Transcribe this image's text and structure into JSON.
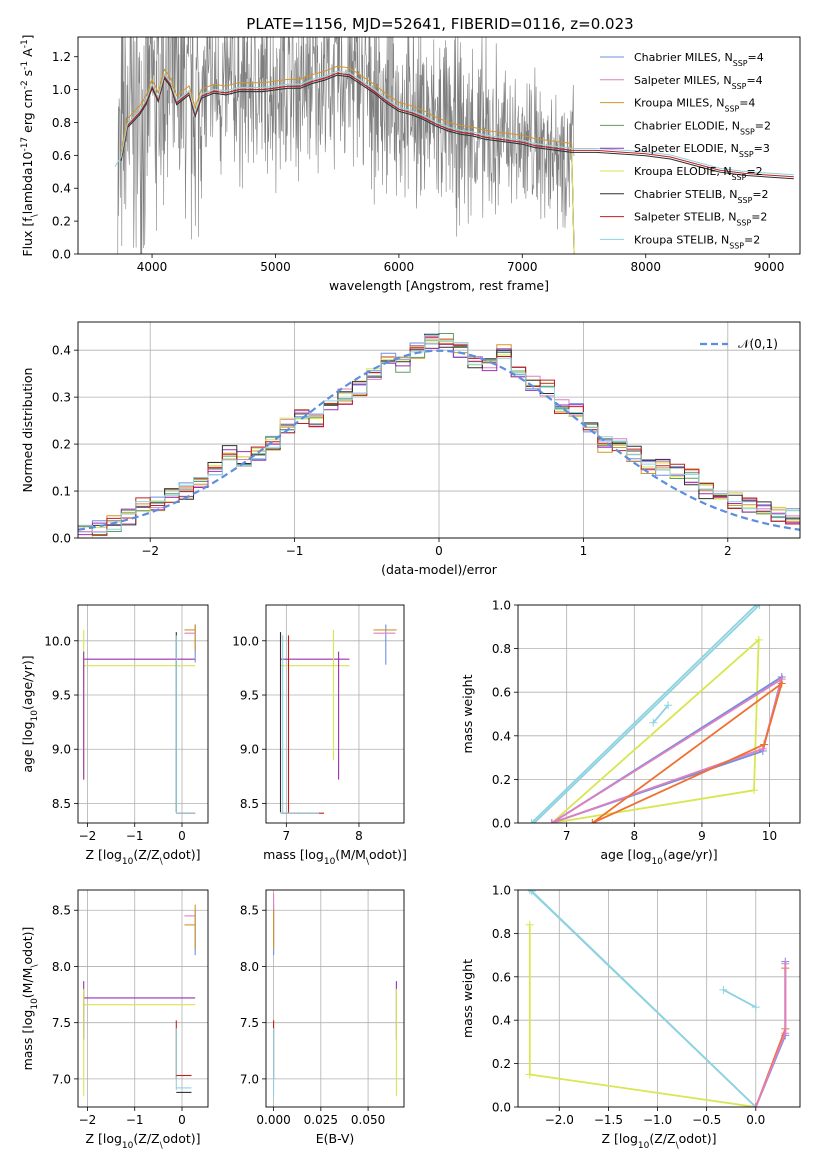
{
  "figure": {
    "title": "PLATE=1156, MJD=52641, FIBERID=0116, z=0.023"
  },
  "colors": {
    "data": "#7f7f7f",
    "grid": "#b0b0b0",
    "models": [
      "#6f8fe0",
      "#e07fc0",
      "#d0962a",
      "#5f9f5f",
      "#9b30b0",
      "#d8e650",
      "#303030",
      "#c02020",
      "#8ed2e0"
    ],
    "mw_palette": [
      "#6f8fe0",
      "#e07fc0",
      "#f07030",
      "#9b30b0",
      "#d8e650",
      "#8ed2e0",
      "#c02020"
    ]
  },
  "chart_data": [
    {
      "id": "spectrum",
      "type": "line",
      "xlabel": "wavelength [Angstrom, rest frame]",
      "ylabel": "Flux [f$_\\lambda$10$^{-17}$ erg cm$^{-2}$ s$^{-1}$ A$^{-1}$]",
      "xlim": [
        3400,
        9250
      ],
      "ylim": [
        0,
        1.32
      ],
      "xticks": [
        4000,
        5000,
        6000,
        7000,
        8000,
        9000
      ],
      "yticks": [
        0.0,
        0.2,
        0.4,
        0.6,
        0.8,
        1.0,
        1.2
      ],
      "legend_loc": "upper right",
      "data_series": {
        "name": "data",
        "color": "#7f7f7f",
        "x_range": [
          3720,
          7420
        ]
      },
      "continuum": {
        "x": [
          3700,
          3750,
          3800,
          3850,
          3900,
          3950,
          4000,
          4050,
          4100,
          4150,
          4200,
          4250,
          4300,
          4350,
          4400,
          4500,
          4600,
          4700,
          4800,
          4900,
          5000,
          5100,
          5200,
          5300,
          5400,
          5500,
          5600,
          5700,
          5800,
          5900,
          6000,
          6100,
          6200,
          6300,
          6400,
          6500,
          6600,
          6700,
          6800,
          6900,
          7000,
          7100,
          7200,
          7300,
          7400,
          7600,
          7800,
          8000,
          8200,
          8400,
          8600,
          8800,
          9000,
          9200
        ],
        "y": [
          0.52,
          0.58,
          0.78,
          0.82,
          0.86,
          0.92,
          1.02,
          0.94,
          1.08,
          1.03,
          0.92,
          0.95,
          0.98,
          0.85,
          0.96,
          0.99,
          0.98,
          1.0,
          1.0,
          1.0,
          1.01,
          1.02,
          1.02,
          1.05,
          1.07,
          1.1,
          1.09,
          1.04,
          0.99,
          0.93,
          0.88,
          0.86,
          0.83,
          0.79,
          0.76,
          0.74,
          0.73,
          0.71,
          0.7,
          0.69,
          0.68,
          0.66,
          0.65,
          0.64,
          0.63,
          0.63,
          0.62,
          0.61,
          0.59,
          0.55,
          0.51,
          0.49,
          0.48,
          0.47
        ]
      },
      "legend": [
        {
          "name": "Chabrier MILES, N$_{SSP}$=4"
        },
        {
          "name": "Salpeter MILES, N$_{SSP}$=4"
        },
        {
          "name": "Kroupa MILES, N$_{SSP}$=4"
        },
        {
          "name": "Chabrier ELODIE, N$_{SSP}$=2"
        },
        {
          "name": "Salpeter ELODIE, N$_{SSP}$=3"
        },
        {
          "name": "Kroupa ELODIE, N$_{SSP}$=2"
        },
        {
          "name": "Chabrier STELIB, N$_{SSP}$=2"
        },
        {
          "name": "Salpeter STELIB, N$_{SSP}$=2"
        },
        {
          "name": "Kroupa STELIB, N$_{SSP}$=2"
        }
      ]
    },
    {
      "id": "residuals",
      "type": "line",
      "xlabel": "(data-model)/error",
      "ylabel": "Normed distribution",
      "xlim": [
        -2.5,
        2.5
      ],
      "ylim": [
        0,
        0.46
      ],
      "xticks": [
        -2,
        -1,
        0,
        1,
        2
      ],
      "yticks": [
        0.0,
        0.1,
        0.2,
        0.3,
        0.4
      ],
      "grid": true,
      "legend": [
        {
          "name": "$\\mathcal{N}(0,1)$",
          "color": "#5b8ede",
          "style": "dashed"
        }
      ],
      "legend_loc": "upper right",
      "bin_edges": [
        -2.5,
        -2.4,
        -2.3,
        -2.2,
        -2.1,
        -2.0,
        -1.9,
        -1.8,
        -1.7,
        -1.6,
        -1.5,
        -1.4,
        -1.3,
        -1.2,
        -1.1,
        -1.0,
        -0.9,
        -0.8,
        -0.7,
        -0.6,
        -0.5,
        -0.4,
        -0.3,
        -0.2,
        -0.1,
        0.0,
        0.1,
        0.2,
        0.3,
        0.4,
        0.5,
        0.6,
        0.7,
        0.8,
        0.9,
        1.0,
        1.1,
        1.2,
        1.3,
        1.4,
        1.5,
        1.6,
        1.7,
        1.8,
        1.9,
        2.0,
        2.1,
        2.2,
        2.3,
        2.4,
        2.5
      ],
      "histogram": [
        0.015,
        0.02,
        0.03,
        0.045,
        0.07,
        0.075,
        0.09,
        0.1,
        0.12,
        0.15,
        0.18,
        0.17,
        0.18,
        0.2,
        0.24,
        0.26,
        0.25,
        0.28,
        0.3,
        0.32,
        0.35,
        0.38,
        0.37,
        0.4,
        0.42,
        0.42,
        0.4,
        0.38,
        0.37,
        0.4,
        0.35,
        0.33,
        0.32,
        0.28,
        0.27,
        0.23,
        0.2,
        0.2,
        0.18,
        0.15,
        0.15,
        0.14,
        0.13,
        0.1,
        0.09,
        0.08,
        0.07,
        0.06,
        0.05,
        0.045
      ],
      "normal_curve": {
        "mu": 0,
        "sigma": 1
      }
    },
    {
      "id": "age_vs_Z",
      "type": "line",
      "xlabel": "Z [log$_{10}$($Z/Z_\\odot$)]",
      "ylabel": "age  [log$_{10}$($age/yr$)]",
      "xlim": [
        -2.2,
        0.55
      ],
      "ylim": [
        8.32,
        10.33
      ],
      "xticks": [
        -2,
        -1,
        0
      ],
      "yticks": [
        8.5,
        9.0,
        9.5,
        10.0
      ],
      "grid": true,
      "lines": [
        {
          "c": 4,
          "x": [
            -2.08,
            0.28
          ],
          "y": [
            9.83,
            9.83
          ]
        },
        {
          "c": 5,
          "x": [
            -2.08,
            0.28
          ],
          "y": [
            9.77,
            9.77
          ]
        },
        {
          "c": 5,
          "x": [
            -2.08,
            -2.08
          ],
          "y": [
            8.72,
            10.1
          ]
        },
        {
          "c": 4,
          "x": [
            -2.08,
            -2.08
          ],
          "y": [
            8.72,
            9.9
          ]
        },
        {
          "c": 6,
          "x": [
            -0.12,
            -0.12
          ],
          "y": [
            8.42,
            10.08
          ]
        },
        {
          "c": 7,
          "x": [
            -0.12,
            0.28
          ],
          "y": [
            8.41,
            8.41
          ]
        },
        {
          "c": 8,
          "x": [
            -0.12,
            0.28
          ],
          "y": [
            8.41,
            8.41
          ]
        },
        {
          "c": 8,
          "x": [
            -0.12,
            -0.12
          ],
          "y": [
            8.41,
            10.05
          ]
        },
        {
          "c": 0,
          "x": [
            0.28,
            0.28
          ],
          "y": [
            9.8,
            10.15
          ]
        },
        {
          "c": 2,
          "x": [
            0.28,
            0.28
          ],
          "y": [
            9.9,
            10.15
          ]
        },
        {
          "c": 2,
          "x": [
            0.05,
            0.28
          ],
          "y": [
            10.1,
            10.1
          ]
        },
        {
          "c": 1,
          "x": [
            0.05,
            0.28
          ],
          "y": [
            10.07,
            10.07
          ]
        }
      ]
    },
    {
      "id": "age_vs_mass",
      "type": "line",
      "xlabel": "mass [log$_{10}$($M/M_\\odot$)]",
      "ylabel": "",
      "xlim": [
        6.72,
        8.62
      ],
      "ylim": [
        8.32,
        10.33
      ],
      "xticks": [
        7,
        8
      ],
      "yticks": [
        8.5,
        9.0,
        9.5,
        10.0
      ],
      "grid": true,
      "lines": [
        {
          "c": 4,
          "x": [
            6.92,
            7.87
          ],
          "y": [
            9.83,
            9.83
          ]
        },
        {
          "c": 5,
          "x": [
            6.92,
            7.87
          ],
          "y": [
            9.77,
            9.77
          ]
        },
        {
          "c": 4,
          "x": [
            7.72,
            7.72
          ],
          "y": [
            8.72,
            9.9
          ]
        },
        {
          "c": 5,
          "x": [
            7.65,
            7.65
          ],
          "y": [
            8.9,
            10.1
          ]
        },
        {
          "c": 6,
          "x": [
            6.92,
            6.92
          ],
          "y": [
            8.42,
            10.08
          ]
        },
        {
          "c": 7,
          "x": [
            7.03,
            7.03
          ],
          "y": [
            8.41,
            10.05
          ]
        },
        {
          "c": 8,
          "x": [
            6.95,
            6.95
          ],
          "y": [
            8.41,
            10.05
          ]
        },
        {
          "c": 7,
          "x": [
            6.92,
            7.52
          ],
          "y": [
            8.41,
            8.41
          ]
        },
        {
          "c": 8,
          "x": [
            6.92,
            7.45
          ],
          "y": [
            8.41,
            8.41
          ]
        },
        {
          "c": 0,
          "x": [
            8.37,
            8.37
          ],
          "y": [
            9.78,
            10.15
          ]
        },
        {
          "c": 2,
          "x": [
            8.2,
            8.52
          ],
          "y": [
            10.1,
            10.1
          ]
        },
        {
          "c": 1,
          "x": [
            8.2,
            8.5
          ],
          "y": [
            10.07,
            10.07
          ]
        }
      ]
    },
    {
      "id": "massweight_vs_age",
      "type": "line",
      "xlabel": "age  [log$_{10}$($age/yr$)]",
      "ylabel": "mass weight",
      "xlim": [
        6.28,
        10.45
      ],
      "ylim": [
        0,
        1.0
      ],
      "xticks": [
        7,
        8,
        9,
        10
      ],
      "yticks": [
        0.0,
        0.2,
        0.4,
        0.6,
        0.8,
        1.0
      ],
      "grid": true,
      "lines": [
        {
          "c": 4,
          "x": [
            6.78,
            9.77,
            9.84,
            6.78
          ]
        },
        {
          "c": 0,
          "x": [
            6.78,
            9.9,
            10.18,
            6.78
          ]
        },
        {
          "c": 1,
          "x": [
            6.78,
            9.9,
            10.18,
            6.78
          ]
        },
        {
          "c": 2,
          "x": [
            7.38,
            9.92,
            10.18,
            7.38
          ]
        },
        {
          "c": 5,
          "x": [
            6.48,
            9.8
          ]
        },
        {
          "c": 5,
          "x": [
            6.52,
            9.85
          ]
        },
        {
          "c": 5,
          "x": [
            8.28,
            8.5
          ]
        }
      ],
      "line_y": [
        [
          0.0,
          0.15,
          0.84,
          0.0
        ],
        [
          0.0,
          0.33,
          0.67,
          0.0
        ],
        [
          0.0,
          0.34,
          0.66,
          0.0
        ],
        [
          0.0,
          0.36,
          0.64,
          0.0
        ],
        [
          0.0,
          1.0
        ],
        [
          0.0,
          1.0
        ],
        [
          0.46,
          0.54
        ]
      ]
    },
    {
      "id": "mass_vs_Z",
      "type": "line",
      "xlabel": "Z [log$_{10}$($Z/Z_\\odot$)]",
      "ylabel": "mass [log$_{10}$($M/M_\\odot$)]",
      "xlim": [
        -2.2,
        0.55
      ],
      "ylim": [
        6.75,
        8.68
      ],
      "xticks": [
        -2,
        -1,
        0
      ],
      "yticks": [
        7.0,
        7.5,
        8.0,
        8.5
      ],
      "grid": true,
      "lines": [
        {
          "c": 4,
          "x": [
            -2.08,
            0.28
          ],
          "y": [
            7.72,
            7.72
          ]
        },
        {
          "c": 5,
          "x": [
            -2.08,
            0.28
          ],
          "y": [
            7.66,
            7.66
          ]
        },
        {
          "c": 4,
          "x": [
            -2.08,
            -2.08
          ],
          "y": [
            7.35,
            7.87
          ]
        },
        {
          "c": 5,
          "x": [
            -2.08,
            -2.08
          ],
          "y": [
            6.85,
            7.8
          ]
        },
        {
          "c": 7,
          "x": [
            -0.12,
            -0.12
          ],
          "y": [
            7.0,
            7.52
          ]
        },
        {
          "c": 8,
          "x": [
            -0.12,
            -0.12
          ],
          "y": [
            6.9,
            7.45
          ]
        },
        {
          "c": 7,
          "x": [
            -0.12,
            0.2
          ],
          "y": [
            7.03,
            7.03
          ]
        },
        {
          "c": 8,
          "x": [
            -0.12,
            0.2
          ],
          "y": [
            6.92,
            6.92
          ]
        },
        {
          "c": 6,
          "x": [
            -0.12,
            0.2
          ],
          "y": [
            6.88,
            6.88
          ]
        },
        {
          "c": 0,
          "x": [
            0.28,
            0.28
          ],
          "y": [
            8.1,
            8.5
          ]
        },
        {
          "c": 2,
          "x": [
            0.28,
            0.28
          ],
          "y": [
            8.15,
            8.55
          ]
        },
        {
          "c": 1,
          "x": [
            0.05,
            0.28
          ],
          "y": [
            8.45,
            8.45
          ]
        },
        {
          "c": 2,
          "x": [
            0.05,
            0.28
          ],
          "y": [
            8.37,
            8.37
          ]
        }
      ]
    },
    {
      "id": "mass_vs_ebv",
      "type": "line",
      "xlabel": "E(B-V)",
      "ylabel": "",
      "xlim": [
        -0.004,
        0.069
      ],
      "ylim": [
        6.75,
        8.68
      ],
      "xticks": [
        0.0,
        0.025,
        0.05
      ],
      "xtick_labels": [
        "0.000",
        "0.025",
        "0.050"
      ],
      "yticks": [
        7.0,
        7.5,
        8.0,
        8.5
      ],
      "grid": true,
      "lines": [
        {
          "c": 0,
          "x": [
            0.0,
            0.0
          ],
          "y": [
            8.1,
            8.55
          ]
        },
        {
          "c": 1,
          "x": [
            0.0,
            0.0
          ],
          "y": [
            8.2,
            8.65
          ]
        },
        {
          "c": 2,
          "x": [
            0.0,
            0.0
          ],
          "y": [
            8.15,
            8.5
          ]
        },
        {
          "c": 7,
          "x": [
            0.0,
            0.0
          ],
          "y": [
            7.0,
            7.52
          ]
        },
        {
          "c": 8,
          "x": [
            0.0,
            0.0
          ],
          "y": [
            6.85,
            7.45
          ]
        },
        {
          "c": 4,
          "x": [
            0.065,
            0.065
          ],
          "y": [
            7.35,
            7.87
          ]
        },
        {
          "c": 5,
          "x": [
            0.065,
            0.065
          ],
          "y": [
            6.85,
            7.8
          ]
        }
      ]
    },
    {
      "id": "massweight_vs_Z",
      "type": "line",
      "xlabel": "Z [log$_{10}$($Z/Z_\\odot$)]",
      "ylabel": "mass weight",
      "xlim": [
        -2.42,
        0.45
      ],
      "ylim": [
        0,
        1.0
      ],
      "xticks": [
        -2.0,
        -1.5,
        -1.0,
        -0.5,
        0.0
      ],
      "yticks": [
        0.0,
        0.2,
        0.4,
        0.6,
        0.8,
        1.0
      ],
      "grid": true,
      "lines": [
        {
          "c": 4,
          "x": [
            -2.3,
            -2.3,
            0.0
          ]
        },
        {
          "c": 5,
          "x": [
            -2.3,
            0.0
          ]
        },
        {
          "c": 5,
          "x": [
            -2.28,
            0.0
          ]
        },
        {
          "c": 0,
          "x": [
            0.0,
            0.3,
            0.3
          ]
        },
        {
          "c": 2,
          "x": [
            0.0,
            0.3,
            0.3
          ]
        },
        {
          "c": 1,
          "x": [
            0.0,
            0.3,
            0.3
          ]
        },
        {
          "c": 5,
          "x": [
            -0.33,
            0.0
          ]
        }
      ],
      "line_y": [
        [
          0.84,
          0.15,
          0.0
        ],
        [
          1.0,
          0.0
        ],
        [
          0.995,
          0.0
        ],
        [
          0.0,
          0.33,
          0.67
        ],
        [
          0.0,
          0.36,
          0.64
        ],
        [
          0.0,
          0.34,
          0.66
        ],
        [
          0.54,
          0.46
        ]
      ]
    }
  ]
}
